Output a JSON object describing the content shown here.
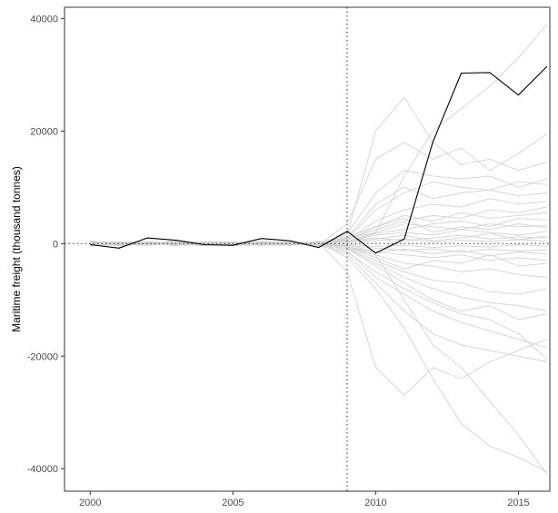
{
  "chart_data": {
    "type": "line",
    "title": "",
    "xlabel": "",
    "ylabel": "Maritime freight (thousand tonnes)",
    "xlim": [
      1999.1,
      2016.1
    ],
    "ylim": [
      -44000,
      42000
    ],
    "x_ticks": [
      2000,
      2005,
      2010,
      2015
    ],
    "y_ticks": [
      -40000,
      -20000,
      0,
      20000,
      40000
    ],
    "grid": false,
    "legend": "none",
    "reference_lines": {
      "vertical_x": 2009,
      "horizontal_y": 0,
      "style": "dotted"
    },
    "x": [
      2000,
      2001,
      2002,
      2003,
      2004,
      2005,
      2006,
      2007,
      2008,
      2009,
      2010,
      2011,
      2012,
      2013,
      2014,
      2015,
      2016
    ],
    "series": [
      {
        "role": "treated",
        "color": "#000000",
        "values": [
          -200,
          -800,
          1000,
          600,
          -200,
          -300,
          900,
          500,
          -700,
          2200,
          -1700,
          800,
          18000,
          30300,
          30400,
          26400,
          31500
        ]
      },
      {
        "role": "placebo",
        "color": "#d3d3d3",
        "values": [
          100,
          300,
          -200,
          400,
          0,
          -300,
          200,
          100,
          -500,
          400,
          2000,
          12000,
          20000,
          24000,
          28000,
          33000,
          39000
        ]
      },
      {
        "role": "placebo",
        "color": "#d3d3d3",
        "values": [
          -300,
          -200,
          300,
          100,
          -400,
          200,
          0,
          -200,
          300,
          -600,
          -2000,
          -10000,
          -18000,
          -22000,
          -28000,
          -34000,
          -41000
        ]
      },
      {
        "role": "placebo",
        "color": "#d3d3d3",
        "values": [
          200,
          -400,
          100,
          -300,
          300,
          -100,
          400,
          200,
          -300,
          3500,
          15000,
          18000,
          15000,
          17000,
          13000,
          16000,
          19500
        ]
      },
      {
        "role": "placebo",
        "color": "#d3d3d3",
        "values": [
          -400,
          200,
          -300,
          200,
          -200,
          100,
          -300,
          -100,
          200,
          -5000,
          -22000,
          -27000,
          -22000,
          -24000,
          -21000,
          -19000,
          -17000
        ]
      },
      {
        "role": "placebo",
        "color": "#d3d3d3",
        "values": [
          500,
          -100,
          -200,
          600,
          100,
          -400,
          100,
          300,
          -200,
          1500,
          20000,
          26000,
          18000,
          14000,
          15000,
          13000,
          14500
        ]
      },
      {
        "role": "placebo",
        "color": "#d3d3d3",
        "values": [
          -100,
          300,
          200,
          -400,
          300,
          200,
          -200,
          -300,
          400,
          -2500,
          -8000,
          -15000,
          -24000,
          -32000,
          -36000,
          -38000,
          -40500
        ]
      },
      {
        "role": "placebo",
        "color": "#d3d3d3",
        "values": [
          300,
          100,
          -100,
          200,
          -100,
          300,
          100,
          -200,
          -100,
          800,
          6000,
          9000,
          11000,
          10000,
          9500,
          11000,
          10500
        ]
      },
      {
        "role": "placebo",
        "color": "#d3d3d3",
        "values": [
          -200,
          -300,
          200,
          -100,
          200,
          -200,
          300,
          100,
          100,
          -1200,
          -6000,
          -9000,
          -12000,
          -14000,
          -15500,
          -17000,
          -18500
        ]
      },
      {
        "role": "placebo",
        "color": "#d3d3d3",
        "values": [
          100,
          200,
          -300,
          300,
          -300,
          100,
          -100,
          200,
          -300,
          600,
          4000,
          6000,
          7000,
          6500,
          8000,
          7000,
          7500
        ]
      },
      {
        "role": "placebo",
        "color": "#d3d3d3",
        "values": [
          -300,
          100,
          100,
          -200,
          100,
          300,
          -200,
          -100,
          200,
          -900,
          -4000,
          -7000,
          -10000,
          -12000,
          -11000,
          -13500,
          -12500
        ]
      },
      {
        "role": "placebo",
        "color": "#d3d3d3",
        "values": [
          200,
          -100,
          300,
          100,
          -200,
          -100,
          200,
          300,
          -200,
          1200,
          3000,
          5000,
          4000,
          5500,
          4500,
          5000,
          5500
        ]
      },
      {
        "role": "placebo",
        "color": "#d3d3d3",
        "values": [
          -100,
          -200,
          -100,
          300,
          200,
          100,
          -300,
          100,
          300,
          -700,
          -3000,
          -5000,
          -6500,
          -7000,
          -8500,
          -9000,
          -8000
        ]
      },
      {
        "role": "placebo",
        "color": "#d3d3d3",
        "values": [
          400,
          200,
          100,
          -300,
          -100,
          -200,
          300,
          -300,
          100,
          900,
          2000,
          3500,
          3000,
          2500,
          3500,
          3000,
          3200
        ]
      },
      {
        "role": "placebo",
        "color": "#d3d3d3",
        "values": [
          -200,
          100,
          -200,
          100,
          300,
          -300,
          -100,
          200,
          -100,
          -400,
          -2000,
          -3500,
          -4000,
          -5000,
          -4500,
          -5500,
          -6000
        ]
      },
      {
        "role": "placebo",
        "color": "#d3d3d3",
        "values": [
          100,
          -300,
          300,
          -200,
          -300,
          200,
          200,
          -200,
          400,
          300,
          1500,
          2000,
          1500,
          2500,
          2000,
          1500,
          2200
        ]
      },
      {
        "role": "placebo",
        "color": "#d3d3d3",
        "values": [
          -300,
          300,
          -100,
          200,
          100,
          -100,
          -300,
          300,
          -200,
          -200,
          -1500,
          -2000,
          -2500,
          -2000,
          -3000,
          -2500,
          -3000
        ]
      },
      {
        "role": "placebo",
        "color": "#d3d3d3",
        "values": [
          300,
          -200,
          200,
          -100,
          -200,
          300,
          100,
          -100,
          200,
          500,
          1000,
          500,
          1000,
          1500,
          800,
          1200,
          1000
        ]
      },
      {
        "role": "placebo",
        "color": "#d3d3d3",
        "values": [
          -100,
          200,
          -300,
          300,
          200,
          -200,
          -200,
          200,
          -300,
          -300,
          -800,
          -1200,
          -900,
          -1500,
          -1000,
          -1300,
          -1100
        ]
      },
      {
        "role": "placebo",
        "color": "#d3d3d3",
        "values": [
          200,
          100,
          100,
          -300,
          -100,
          100,
          300,
          -300,
          100,
          200,
          500,
          800,
          300,
          600,
          400,
          700,
          500
        ]
      },
      {
        "role": "placebo",
        "color": "#d3d3d3",
        "values": [
          -200,
          -100,
          200,
          200,
          -300,
          -300,
          100,
          100,
          -200,
          -100,
          -500,
          -300,
          -700,
          -400,
          -600,
          -200,
          -500
        ]
      },
      {
        "role": "placebo",
        "color": "#d3d3d3",
        "values": [
          100,
          300,
          -200,
          -100,
          100,
          200,
          -200,
          -200,
          300,
          700,
          2500,
          4000,
          5000,
          4500,
          6000,
          5500,
          6500
        ]
      },
      {
        "role": "placebo",
        "color": "#d3d3d3",
        "values": [
          -400,
          -200,
          100,
          100,
          200,
          -100,
          200,
          100,
          -100,
          -1500,
          -5000,
          -8000,
          -10500,
          -12500,
          -13500,
          -16000,
          -20500
        ]
      },
      {
        "role": "placebo",
        "color": "#d3d3d3",
        "values": [
          300,
          200,
          -100,
          -200,
          -200,
          300,
          -100,
          -300,
          300,
          1000,
          7000,
          10000,
          8000,
          9000,
          9500,
          8500,
          9000
        ]
      },
      {
        "role": "placebo",
        "color": "#d3d3d3",
        "values": [
          -200,
          100,
          300,
          -300,
          300,
          -200,
          -300,
          300,
          -300,
          -1800,
          -7000,
          -12000,
          -16000,
          -18000,
          -19000,
          -20000,
          -21000
        ]
      },
      {
        "role": "placebo",
        "color": "#d3d3d3",
        "values": [
          200,
          -300,
          -200,
          300,
          -100,
          100,
          300,
          -100,
          200,
          600,
          3000,
          4500,
          2000,
          3000,
          2500,
          3500,
          2800
        ]
      },
      {
        "role": "placebo",
        "color": "#d3d3d3",
        "values": [
          -300,
          200,
          100,
          -100,
          100,
          -300,
          -100,
          200,
          -200,
          -500,
          -2500,
          -4500,
          -3000,
          -3500,
          -2000,
          -4000,
          -3500
        ]
      },
      {
        "role": "placebo",
        "color": "#d3d3d3",
        "values": [
          100,
          -100,
          -300,
          200,
          -300,
          200,
          200,
          -200,
          100,
          400,
          1800,
          2500,
          3500,
          4000,
          3000,
          4500,
          4200
        ]
      },
      {
        "role": "placebo",
        "color": "#d3d3d3",
        "values": [
          -100,
          200,
          300,
          -300,
          200,
          100,
          -300,
          300,
          -400,
          -800,
          -3500,
          -6000,
          -8000,
          -9500,
          -10500,
          -11000,
          -12000
        ]
      },
      {
        "role": "placebo",
        "color": "#d3d3d3",
        "values": [
          300,
          -200,
          -100,
          100,
          -200,
          -100,
          100,
          -100,
          300,
          300,
          800,
          1500,
          500,
          1000,
          1800,
          700,
          1300
        ]
      },
      {
        "role": "placebo",
        "color": "#d3d3d3",
        "values": [
          -200,
          -300,
          200,
          -200,
          300,
          300,
          -200,
          -300,
          200,
          -600,
          -1500,
          -1000,
          -1800,
          -1200,
          -2200,
          -1500,
          -1800
        ]
      },
      {
        "role": "placebo",
        "color": "#d3d3d3",
        "values": [
          400,
          100,
          -200,
          300,
          -100,
          -200,
          300,
          200,
          -100,
          1800,
          9000,
          13000,
          12000,
          11500,
          12000,
          10000,
          11500
        ]
      }
    ]
  }
}
